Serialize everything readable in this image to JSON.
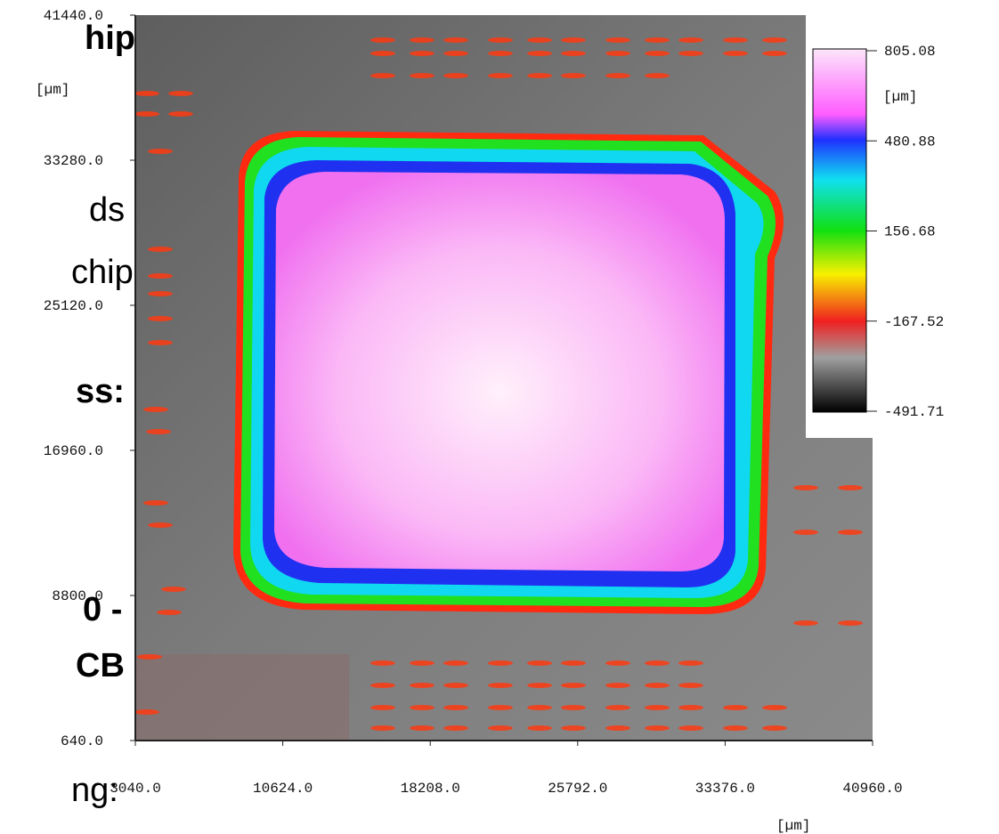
{
  "slide_fragments": [
    "hip",
    "ds",
    "chip",
    "ss:",
    "0 -",
    "CB",
    "ng:"
  ],
  "chart_data": {
    "type": "heatmap",
    "xlim": [
      3040,
      40960
    ],
    "ylim": [
      640,
      41440
    ],
    "xticks": [
      {
        "value": 3040,
        "label": "3040.0"
      },
      {
        "value": 10624,
        "label": "10624.0"
      },
      {
        "value": 18208,
        "label": "18208.0"
      },
      {
        "value": 25792,
        "label": "25792.0"
      },
      {
        "value": 33376,
        "label": "33376.0"
      },
      {
        "value": 40960,
        "label": "40960.0"
      }
    ],
    "yticks": [
      {
        "value": 640,
        "label": "640.0"
      },
      {
        "value": 8800,
        "label": "8800.0"
      },
      {
        "value": 16960,
        "label": "16960.0"
      },
      {
        "value": 25120,
        "label": "25120.0"
      },
      {
        "value": 33280,
        "label": "33280.0"
      },
      {
        "value": 41440,
        "label": "41440.0"
      }
    ],
    "x_unit": "[µm]",
    "y_unit": "[µm]",
    "colorbar": {
      "unit": "[µm]",
      "lim": [
        -491.71,
        805.08
      ],
      "ticks": [
        805.08,
        480.88,
        156.68,
        -167.52,
        -491.71
      ]
    }
  }
}
